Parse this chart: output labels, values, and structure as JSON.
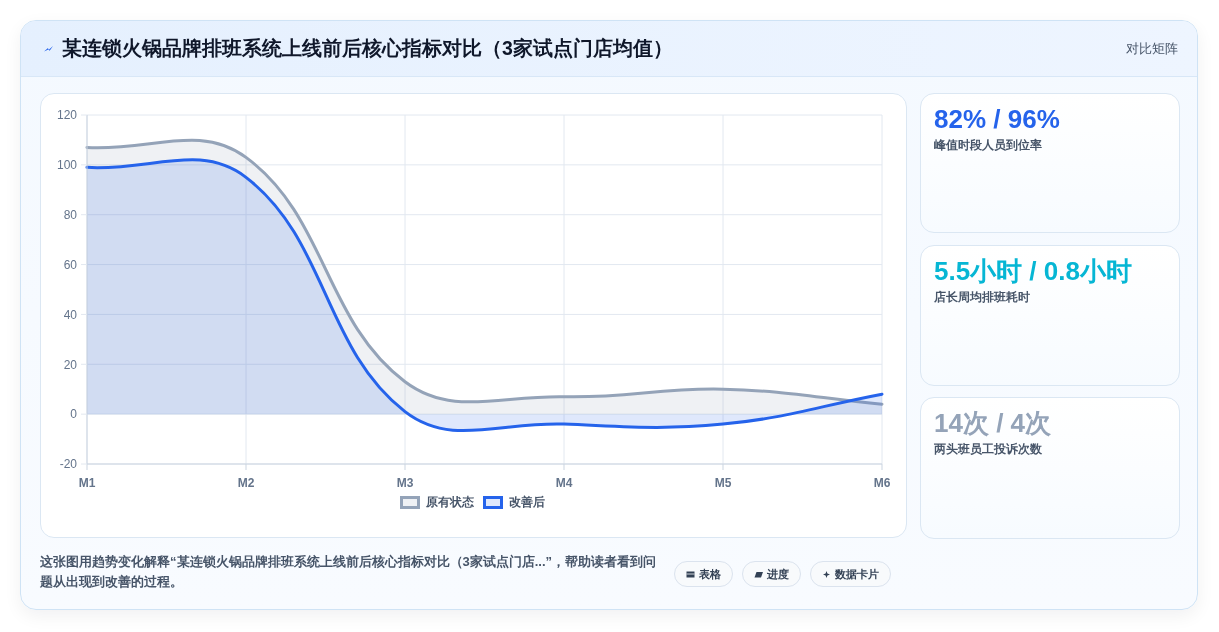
{
  "chart_data": [
    {
      "type": "area",
      "title": "某连锁火锅品牌排班系统上线前后核心指标对比（3家试点门店均值）",
      "categories": [
        "M1",
        "M2",
        "M3",
        "M4",
        "M5",
        "M6"
      ],
      "series": [
        {
          "name": "原有状态",
          "color": "#94a3b8",
          "values": [
            107,
            103,
            13,
            7,
            10,
            4
          ]
        },
        {
          "name": "改善后",
          "color": "#2563eb",
          "values": [
            99,
            95,
            1,
            -4,
            -4,
            8
          ]
        }
      ],
      "ylim": [
        -20,
        120
      ],
      "yticks": [
        -20,
        0,
        20,
        40,
        60,
        80,
        100,
        120
      ],
      "grid": true,
      "legend": "bottom",
      "annotations": [
        "对比矩阵",
        "这张图用趋势变化解释“某连锁火锅品牌排班系统上线前后核心指标对比（3家试点门店...”，帮助读者看到问题从出现到改善的过程。",
        "表格",
        "进度",
        "数据卡片"
      ]
    },
    {
      "type": "other",
      "color": "#2563eb",
      "annotations": [
        "82% / 96%",
        "峰值时段人员到位率"
      ]
    },
    {
      "type": "other",
      "color": "#06b6d4",
      "annotations": [
        "5.5小时 / 0.8小时",
        "店长周均排班耗时"
      ]
    },
    {
      "type": "other",
      "color": "#94a3b8",
      "annotations": [
        "14次 / 4次",
        "两头班员工投诉次数"
      ]
    }
  ]
}
